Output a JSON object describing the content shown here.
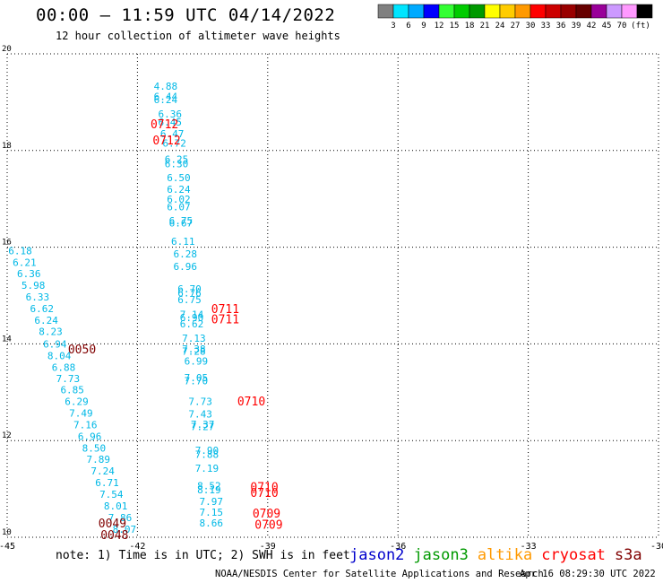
{
  "header": {
    "title": "00:00 – 11:59 UTC 04/14/2022",
    "subtitle": "12 hour collection of altimeter wave heights"
  },
  "legend_scale": {
    "colors": [
      "#808080",
      "#00e5ff",
      "#00aaff",
      "#0000ff",
      "#33ff33",
      "#00cc00",
      "#009900",
      "#ffff00",
      "#ffcc00",
      "#ff9900",
      "#ff0000",
      "#cc0000",
      "#990000",
      "#660000",
      "#990099",
      "#cc99ff",
      "#ff99ff",
      "#000000"
    ],
    "labels": [
      "3",
      "6",
      "9",
      "12",
      "15",
      "18",
      "21",
      "24",
      "27",
      "30",
      "33",
      "36",
      "39",
      "42",
      "45",
      "70",
      "(ft)"
    ]
  },
  "footer": {
    "note": "note: 1) Time is in UTC; 2) SWH is in feet",
    "credit": "NOAA/NESDIS Center for Satellite Applications and Research",
    "timestamp": "Apr 16 08:29:30 UTC 2022"
  },
  "satellites": [
    {
      "name": "jason2",
      "color": "#0000cc"
    },
    {
      "name": "jason3",
      "color": "#009900"
    },
    {
      "name": "altika",
      "color": "#ff9900"
    },
    {
      "name": "cryosat",
      "color": "#ff0000"
    },
    {
      "name": "s3a",
      "color": "#800000"
    }
  ],
  "chart_data": {
    "type": "scatter",
    "xlim": [
      -45,
      -30
    ],
    "ylim": [
      10,
      20
    ],
    "x_ticks": [
      "-45",
      "-42",
      "-39",
      "-36",
      "-33",
      "-30"
    ],
    "y_ticks": [
      "20",
      "18",
      "16",
      "14",
      "12",
      "10"
    ],
    "grid": true,
    "swh_color": "#00b8e6",
    "track_a": {
      "values": [
        "4.88",
        "6.44",
        "6.24",
        "6.36",
        "6.45",
        "6.47",
        "6.72",
        "6.25",
        "6.30",
        "6.50",
        "6.24",
        "6.02",
        "6.07",
        "6.75",
        "6.67",
        "6.11",
        "6.28",
        "6.96",
        "6.70",
        "6.76",
        "6.75",
        "7.14",
        "6.90",
        "6.62",
        "7.13",
        "7.38",
        "7.28",
        "6.99",
        "7.05",
        "7.70",
        "7.73",
        "7.43",
        "7.37",
        "7.27",
        "7.90",
        "7.88",
        "7.19",
        "8.52",
        "8.19",
        "7.97",
        "7.15",
        "8.66"
      ],
      "lat": [
        19.33,
        19.12,
        19.05,
        18.76,
        18.59,
        18.35,
        18.15,
        17.82,
        17.73,
        17.44,
        17.2,
        16.99,
        16.84,
        16.55,
        16.5,
        16.12,
        15.86,
        15.6,
        15.14,
        15.06,
        14.92,
        14.61,
        14.55,
        14.42,
        14.12,
        13.9,
        13.85,
        13.65,
        13.3,
        13.24,
        12.81,
        12.55,
        12.34,
        12.29,
        11.8,
        11.72,
        11.43,
        11.07,
        10.98,
        10.74,
        10.52,
        10.3
      ],
      "lon": [
        -41.35,
        -41.35,
        -41.35,
        -41.25,
        -41.25,
        -41.2,
        -41.15,
        -41.1,
        -41.1,
        -41.05,
        -41.05,
        -41.05,
        -41.05,
        -41.0,
        -41.0,
        -40.95,
        -40.9,
        -40.9,
        -40.8,
        -40.8,
        -40.8,
        -40.75,
        -40.75,
        -40.75,
        -40.7,
        -40.7,
        -40.7,
        -40.65,
        -40.65,
        -40.65,
        -40.55,
        -40.55,
        -40.5,
        -40.5,
        -40.4,
        -40.4,
        -40.4,
        -40.35,
        -40.35,
        -40.3,
        -40.3,
        -40.3
      ]
    },
    "track_b": {
      "values": [
        "6.18",
        "6.21",
        "6.36",
        "5.98",
        "6.33",
        "6.62",
        "6.24",
        "8.23",
        "6.94",
        "8.04",
        "6.88",
        "7.73",
        "6.85",
        "6.29",
        "7.49",
        "7.16",
        "6.96",
        "8.50",
        "7.89",
        "7.24",
        "6.71",
        "7.54",
        "8.01",
        "7.86",
        "8.07"
      ],
      "lat": [
        15.93,
        15.69,
        15.45,
        15.21,
        14.97,
        14.73,
        14.49,
        14.26,
        14.0,
        13.76,
        13.52,
        13.28,
        13.05,
        12.81,
        12.57,
        12.33,
        12.09,
        11.85,
        11.61,
        11.37,
        11.13,
        10.89,
        10.65,
        10.41,
        10.17
      ],
      "lon": [
        -44.7,
        -44.6,
        -44.5,
        -44.4,
        -44.3,
        -44.2,
        -44.1,
        -44.0,
        -43.9,
        -43.8,
        -43.7,
        -43.6,
        -43.5,
        -43.4,
        -43.3,
        -43.2,
        -43.1,
        -43.0,
        -42.9,
        -42.8,
        -42.7,
        -42.6,
        -42.5,
        -42.4,
        -42.3
      ]
    },
    "time_labels": [
      {
        "text": "0712",
        "lat": 18.55,
        "lon": -41.7,
        "color": "#ff0000"
      },
      {
        "text": "0712",
        "lat": 18.22,
        "lon": -41.65,
        "color": "#ff0000"
      },
      {
        "text": "0711",
        "lat": 14.73,
        "lon": -40.3,
        "color": "#ff0000"
      },
      {
        "text": "0711",
        "lat": 14.52,
        "lon": -40.3,
        "color": "#ff0000"
      },
      {
        "text": "0050",
        "lat": 13.9,
        "lon": -43.6,
        "color": "#800000"
      },
      {
        "text": "0710",
        "lat": 12.82,
        "lon": -39.7,
        "color": "#ff0000"
      },
      {
        "text": "0710",
        "lat": 11.05,
        "lon": -39.4,
        "color": "#ff0000"
      },
      {
        "text": "0710",
        "lat": 10.93,
        "lon": -39.4,
        "color": "#ff0000"
      },
      {
        "text": "0709",
        "lat": 10.5,
        "lon": -39.35,
        "color": "#ff0000"
      },
      {
        "text": "0709",
        "lat": 10.27,
        "lon": -39.3,
        "color": "#ff0000"
      },
      {
        "text": "0049",
        "lat": 10.3,
        "lon": -42.9,
        "color": "#800000"
      },
      {
        "text": "0048",
        "lat": 10.06,
        "lon": -42.85,
        "color": "#800000"
      }
    ]
  }
}
